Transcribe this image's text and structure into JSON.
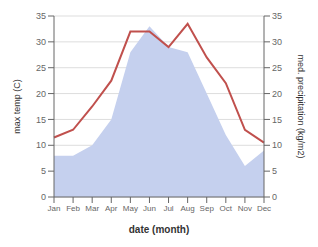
{
  "chart_data": {
    "type": "line",
    "xlabel": "date (month)",
    "ylabel": "max temp (C)",
    "y2label": "med. precipitation (kg/m2)",
    "categories": [
      "Jan",
      "Feb",
      "Mar",
      "Apr",
      "May",
      "Jun",
      "Jul",
      "Aug",
      "Sep",
      "Oct",
      "Nov",
      "Dec"
    ],
    "series": [
      {
        "type": "area",
        "axis": "y2",
        "color": "#c5d0ee",
        "values": [
          8.0,
          8.0,
          10.0,
          15.0,
          28.0,
          33.0,
          29.0,
          28.0,
          20.0,
          12.0,
          6.0,
          9.0
        ]
      },
      {
        "type": "line",
        "color": "#c0504d",
        "values": [
          11.5,
          13.0,
          17.5,
          22.5,
          32.0,
          32.0,
          29.0,
          33.5,
          27.0,
          22.0,
          13.0,
          10.5
        ]
      }
    ],
    "ylim": [
      0,
      35
    ],
    "yticks": [
      0,
      5,
      10,
      15,
      20,
      25,
      30,
      35
    ],
    "y2lim": [
      0,
      35
    ],
    "y2ticks": [
      0,
      5,
      10,
      15,
      20,
      25,
      30,
      35
    ],
    "grid": true
  }
}
